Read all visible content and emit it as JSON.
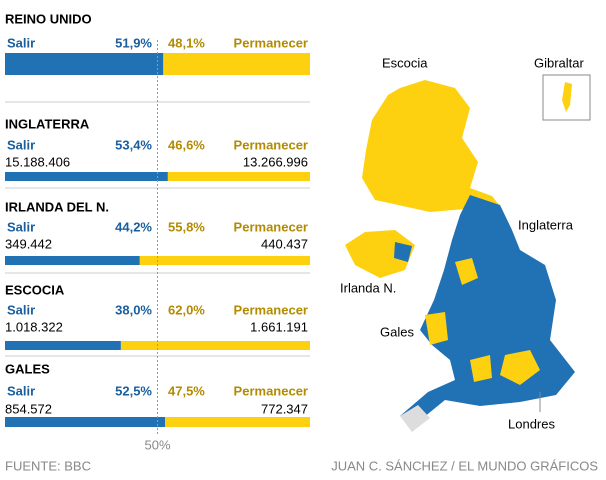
{
  "chart_data": [
    {
      "type": "stacked-bar",
      "title": "REINO UNIDO",
      "xlim": [
        0,
        100
      ],
      "series": [
        {
          "name": "Salir",
          "color": "#2171b5",
          "values": [
            51.9
          ],
          "value_labels": [
            "51,9%"
          ]
        },
        {
          "name": "Permanecer",
          "color": "#fdd10f",
          "values": [
            48.1
          ],
          "value_labels": [
            "48,1%"
          ]
        }
      ]
    },
    {
      "type": "stacked-bar",
      "title": "INGLATERRA",
      "xlim": [
        0,
        100
      ],
      "series": [
        {
          "name": "Salir",
          "color": "#2171b5",
          "values": [
            53.4
          ],
          "value_labels": [
            "53,4%"
          ],
          "totals": [
            "15.188.406"
          ]
        },
        {
          "name": "Permanecer",
          "color": "#fdd10f",
          "values": [
            46.6
          ],
          "value_labels": [
            "46,6%"
          ],
          "totals": [
            "13.266.996"
          ]
        }
      ]
    },
    {
      "type": "stacked-bar",
      "title": "IRLANDA DEL N.",
      "xlim": [
        0,
        100
      ],
      "series": [
        {
          "name": "Salir",
          "color": "#2171b5",
          "values": [
            44.2
          ],
          "value_labels": [
            "44,2%"
          ],
          "totals": [
            "349.442"
          ]
        },
        {
          "name": "Permanecer",
          "color": "#fdd10f",
          "values": [
            55.8
          ],
          "value_labels": [
            "55,8%"
          ],
          "totals": [
            "440.437"
          ]
        }
      ]
    },
    {
      "type": "stacked-bar",
      "title": "ESCOCIA",
      "xlim": [
        0,
        100
      ],
      "series": [
        {
          "name": "Salir",
          "color": "#2171b5",
          "values": [
            38.0
          ],
          "value_labels": [
            "38,0%"
          ],
          "totals": [
            "1.018.322"
          ]
        },
        {
          "name": "Permanecer",
          "color": "#fdd10f",
          "values": [
            62.0
          ],
          "value_labels": [
            "62,0%"
          ],
          "totals": [
            "1.661.191"
          ]
        }
      ]
    },
    {
      "type": "stacked-bar",
      "title": "GALES",
      "xlim": [
        0,
        100
      ],
      "series": [
        {
          "name": "Salir",
          "color": "#2171b5",
          "values": [
            52.5
          ],
          "value_labels": [
            "52,5%"
          ],
          "totals": [
            "854.572"
          ]
        },
        {
          "name": "Permanecer",
          "color": "#fdd10f",
          "values": [
            47.5
          ],
          "value_labels": [
            "47,5%"
          ],
          "totals": [
            "772.347"
          ]
        }
      ]
    }
  ],
  "reference": {
    "value": 50,
    "label": "50%"
  },
  "map_labels": [
    "Escocia",
    "Gibraltar",
    "Inglaterra",
    "Irlanda N.",
    "Gales",
    "Londres"
  ],
  "source": "FUENTE: BBC",
  "credit": "JUAN C. SÁNCHEZ / EL MUNDO GRÁFICOS"
}
